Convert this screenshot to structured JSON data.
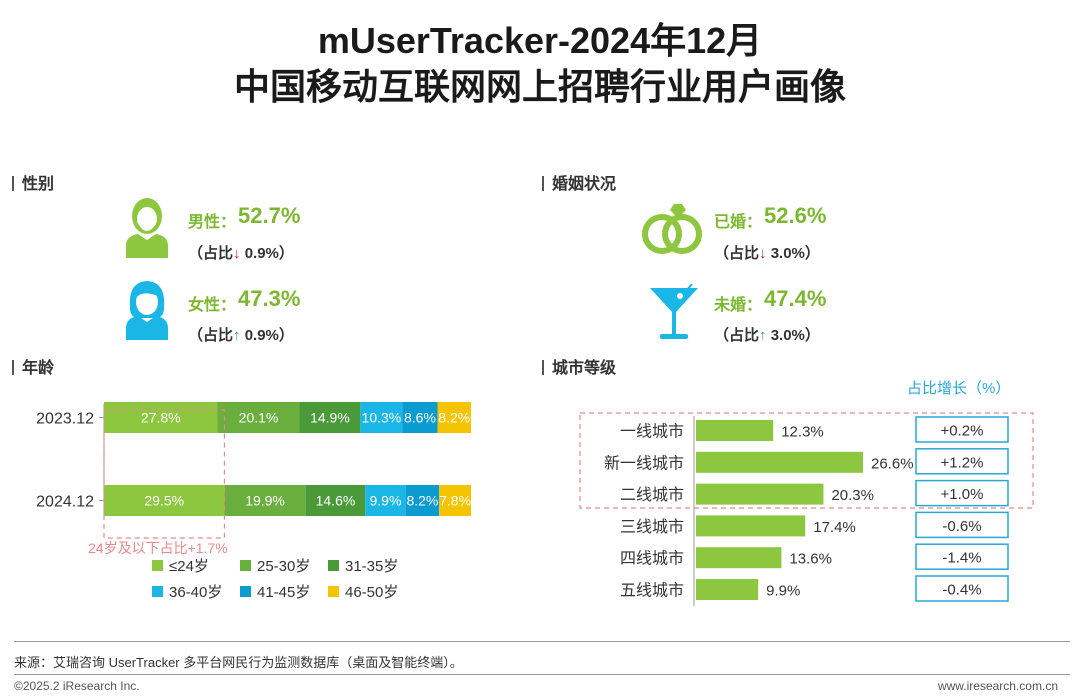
{
  "header": {
    "line1": "mUserTracker-2024年12月",
    "line2": "中国移动互联网网上招聘行业用户画像"
  },
  "gender": {
    "title": "性别",
    "male": {
      "label": "男性：",
      "value": "52.7%",
      "share_prefix": "（占比",
      "arrow": "↓",
      "change": "0.9%）",
      "icon": "male-user-icon"
    },
    "female": {
      "label": "女性：",
      "value": "47.3%",
      "share_prefix": "（占比",
      "arrow": "↑",
      "change": "0.9%）",
      "icon": "female-user-icon"
    }
  },
  "marital": {
    "title": "婚姻状况",
    "married": {
      "label": "已婚：",
      "value": "52.6%",
      "share_prefix": "（占比",
      "arrow": "↓",
      "change": "3.0%）",
      "icon": "wedding-rings-icon"
    },
    "single": {
      "label": "未婚：",
      "value": "47.4%",
      "share_prefix": "（占比",
      "arrow": "↑",
      "change": "3.0%）",
      "icon": "cocktail-glass-icon"
    }
  },
  "age_section": {
    "title": "年龄",
    "annotation": "24岁及以下占比+1.7%"
  },
  "city_section": {
    "title": "城市等级",
    "growth_title": "占比增长（%）"
  },
  "colors": {
    "green_light": "#8dc63f",
    "green_mid": "#6aaf3d",
    "green_dark": "#4a9a3a",
    "cyan": "#1ab7e6",
    "blue": "#0a9bd1",
    "yellow": "#f5c400",
    "accent_text": "#7cb82f",
    "dashed_red": "#e88a8a",
    "growth_box_border": "#29a8d8"
  },
  "chart_data": [
    {
      "type": "bar",
      "orientation": "horizontal",
      "stacked": true,
      "categories": [
        "2023.12",
        "2024.12"
      ],
      "series": [
        {
          "name": "≤24岁",
          "values": [
            27.8,
            29.5
          ],
          "labels": [
            "27.8%",
            "29.5%"
          ],
          "color": "#8dc63f"
        },
        {
          "name": "25-30岁",
          "values": [
            20.1,
            19.9
          ],
          "labels": [
            "20.1%",
            "19.9%"
          ],
          "color": "#6aaf3d"
        },
        {
          "name": "31-35岁",
          "values": [
            14.9,
            14.6
          ],
          "labels": [
            "14.9%",
            "14.6%"
          ],
          "color": "#4a9a3a"
        },
        {
          "name": "36-40岁",
          "values": [
            10.3,
            9.9
          ],
          "labels": [
            "10.3%",
            "9.9%"
          ],
          "color": "#1ab7e6"
        },
        {
          "name": "41-45岁",
          "values": [
            8.6,
            8.2
          ],
          "labels": [
            "8.6%",
            "8.2%"
          ],
          "color": "#0a9bd1"
        },
        {
          "name": "46-50岁",
          "values": [
            8.2,
            7.8
          ],
          "labels": [
            "8.2%",
            "7.8%"
          ],
          "color": "#f5c400"
        }
      ],
      "legend_position": "bottom"
    },
    {
      "type": "bar",
      "orientation": "horizontal",
      "categories": [
        "一线城市",
        "新一线城市",
        "二线城市",
        "三线城市",
        "四线城市",
        "五线城市"
      ],
      "values": [
        12.3,
        26.6,
        20.3,
        17.4,
        13.6,
        9.9
      ],
      "labels": [
        "12.3%",
        "26.6%",
        "20.3%",
        "17.4%",
        "13.6%",
        "9.9%"
      ],
      "growth": [
        "+0.2%",
        "+1.2%",
        "+1.0%",
        "-0.6%",
        "-1.4%",
        "-0.4%"
      ],
      "color": "#8dc63f"
    }
  ],
  "footer": {
    "source": "来源：艾瑞咨询 UserTracker 多平台网民行为监测数据库（桌面及智能终端）。",
    "copyright": "©2025.2 iResearch Inc.",
    "website": "www.iresearch.com.cn"
  }
}
